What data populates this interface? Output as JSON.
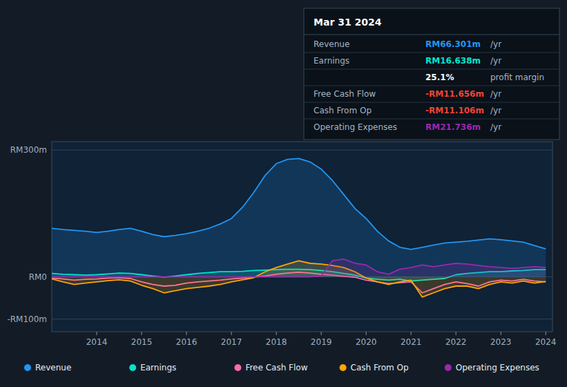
{
  "chart_data": {
    "type": "area",
    "title": "Mar 31 2024",
    "x": [
      2013.0,
      2013.25,
      2013.5,
      2013.75,
      2014.0,
      2014.25,
      2014.5,
      2014.75,
      2015.0,
      2015.25,
      2015.5,
      2015.75,
      2016.0,
      2016.25,
      2016.5,
      2016.75,
      2017.0,
      2017.25,
      2017.5,
      2017.75,
      2018.0,
      2018.25,
      2018.5,
      2018.75,
      2019.0,
      2019.25,
      2019.5,
      2019.75,
      2020.0,
      2020.25,
      2020.5,
      2020.75,
      2021.0,
      2021.25,
      2021.5,
      2021.75,
      2022.0,
      2022.25,
      2022.5,
      2022.75,
      2023.0,
      2023.25,
      2023.5,
      2023.75,
      2024.0
    ],
    "series": [
      {
        "name": "Revenue",
        "color": "#2196f3",
        "values": [
          115,
          112,
          110,
          108,
          105,
          108,
          112,
          115,
          108,
          100,
          95,
          98,
          102,
          108,
          115,
          125,
          138,
          165,
          200,
          240,
          268,
          278,
          280,
          272,
          255,
          228,
          195,
          162,
          138,
          108,
          85,
          70,
          65,
          70,
          75,
          80,
          82,
          84,
          87,
          90,
          88,
          85,
          82,
          74,
          66
        ]
      },
      {
        "name": "Earnings",
        "color": "#00e5cc",
        "values": [
          8,
          6,
          5,
          4,
          5,
          7,
          9,
          8,
          5,
          2,
          -1,
          2,
          5,
          8,
          10,
          12,
          12,
          13,
          15,
          16,
          17,
          18,
          18,
          17,
          15,
          12,
          8,
          4,
          -3,
          -6,
          -8,
          -6,
          -10,
          -8,
          -6,
          -4,
          5,
          8,
          10,
          12,
          12,
          14,
          15,
          17,
          17
        ]
      },
      {
        "name": "Free Cash Flow",
        "color": "#ff69b4",
        "type": "line",
        "values": [
          -3,
          -5,
          -8,
          -6,
          -5,
          -3,
          -2,
          -4,
          -12,
          -18,
          -22,
          -20,
          -15,
          -12,
          -10,
          -8,
          -5,
          -3,
          -1,
          2,
          6,
          9,
          11,
          9,
          6,
          4,
          1,
          -1,
          -8,
          -12,
          -16,
          -14,
          -12,
          -38,
          -28,
          -18,
          -12,
          -16,
          -22,
          -12,
          -8,
          -10,
          -6,
          -10,
          -12
        ]
      },
      {
        "name": "Cash From Op",
        "color": "#ffa500",
        "values": [
          -5,
          -12,
          -18,
          -15,
          -12,
          -9,
          -7,
          -10,
          -20,
          -28,
          -38,
          -33,
          -28,
          -25,
          -22,
          -18,
          -12,
          -7,
          -2,
          12,
          22,
          30,
          38,
          32,
          30,
          27,
          22,
          12,
          -3,
          -12,
          -18,
          -12,
          -8,
          -48,
          -38,
          -28,
          -22,
          -22,
          -28,
          -18,
          -12,
          -15,
          -10,
          -15,
          -11
        ]
      },
      {
        "name": "Operating Expenses",
        "color": "#9c27b0",
        "values": [
          0,
          0,
          0,
          0,
          0,
          0,
          0,
          0,
          0,
          0,
          0,
          0,
          0,
          0,
          0,
          0,
          0,
          0,
          0,
          0,
          0,
          0,
          0,
          0,
          2,
          38,
          42,
          32,
          28,
          12,
          6,
          18,
          22,
          28,
          24,
          28,
          32,
          30,
          27,
          24,
          22,
          20,
          22,
          24,
          22
        ]
      }
    ],
    "xlim": [
      2013.0,
      2024.15
    ],
    "xticks": [
      2014,
      2015,
      2016,
      2017,
      2018,
      2019,
      2020,
      2021,
      2022,
      2023,
      2024
    ],
    "ylim": [
      -130,
      320
    ],
    "yticks": [
      {
        "value": 300,
        "label": "RM300m"
      },
      {
        "value": 0,
        "label": "RM0"
      },
      {
        "value": -100,
        "label": "-RM100m"
      }
    ],
    "grid": true,
    "legend": "bottom",
    "annotations": [
      {
        "label": "Revenue",
        "value": "RM66.301m",
        "color": "#2196f3",
        "suffix": "/yr"
      },
      {
        "label": "Earnings",
        "value": "RM16.638m",
        "color": "#00e5cc",
        "suffix": "/yr"
      },
      {
        "value": "25.1%",
        "color": "#ffffff",
        "suffix": "profit margin"
      },
      {
        "label": "Free Cash Flow",
        "value": "-RM11.656m",
        "color": "#f44336",
        "suffix": "/yr"
      },
      {
        "label": "Cash From Op",
        "value": "-RM11.106m",
        "color": "#f44336",
        "suffix": "/yr"
      },
      {
        "label": "Operating Expenses",
        "value": "RM21.736m",
        "color": "#9c27b0",
        "suffix": "/yr"
      }
    ]
  }
}
